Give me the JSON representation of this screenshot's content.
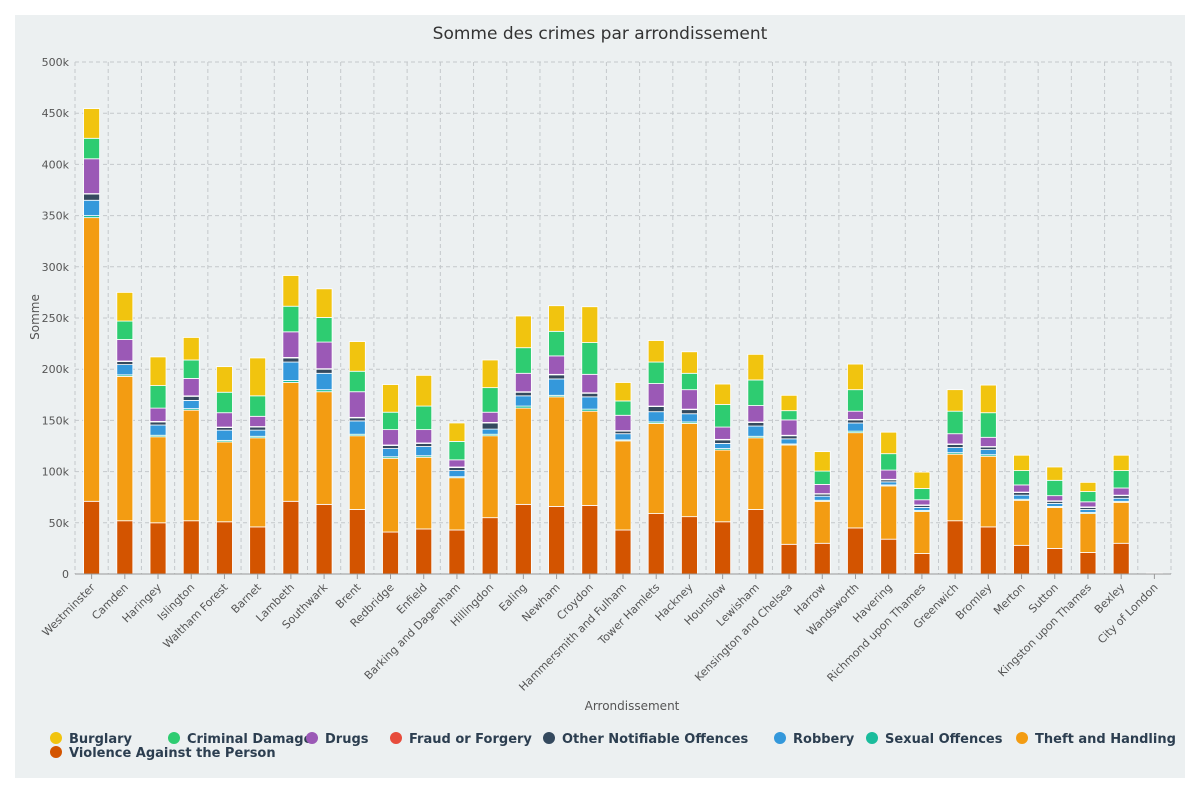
{
  "chart_data": {
    "type": "bar",
    "stacked": true,
    "title": "Somme des crimes par arrondissement",
    "xlabel": "Arrondissement",
    "ylabel": "Somme",
    "ylim": [
      0,
      500000
    ],
    "yticks": [
      "0",
      "50k",
      "100k",
      "150k",
      "200k",
      "250k",
      "300k",
      "350k",
      "400k",
      "450k",
      "500k"
    ],
    "grid": true,
    "legend_position": "bottom",
    "categories": [
      "Westminster",
      "Camden",
      "Haringey",
      "Islington",
      "Waltham Forest",
      "Barnet",
      "Lambeth",
      "Southwark",
      "Brent",
      "Redbridge",
      "Enfield",
      "Barking and Dagenham",
      "Hillingdon",
      "Ealing",
      "Newham",
      "Croydon",
      "Hammersmith and Fulham",
      "Tower Hamlets",
      "Hackney",
      "Hounslow",
      "Lewisham",
      "Kensington and Chelsea",
      "Harrow",
      "Wandsworth",
      "Havering",
      "Richmond upon Thames",
      "Greenwich",
      "Bromley",
      "Merton",
      "Sutton",
      "Kingston upon Thames",
      "Bexley",
      "City of London"
    ],
    "stack_order": [
      "Violence Against the Person",
      "Theft and Handling",
      "Sexual Offences",
      "Robbery",
      "Other Notifiable Offences",
      "Fraud or Forgery",
      "Drugs",
      "Criminal Damage",
      "Burglary"
    ],
    "series": [
      {
        "name": "Burglary",
        "color": "#f1c40f",
        "values": [
          29000,
          28000,
          28000,
          22000,
          25000,
          37000,
          30000,
          28000,
          29000,
          27000,
          30000,
          18000,
          27000,
          31000,
          25000,
          35000,
          18000,
          21000,
          21000,
          20000,
          25000,
          15000,
          19000,
          25000,
          21000,
          16000,
          21000,
          27000,
          15000,
          13000,
          9000,
          15000,
          100
        ]
      },
      {
        "name": "Criminal Damage",
        "color": "#2ecc71",
        "values": [
          20000,
          18000,
          22000,
          18000,
          20000,
          20000,
          25000,
          24000,
          20000,
          17000,
          23000,
          18000,
          24000,
          25000,
          24000,
          31000,
          14000,
          21000,
          16000,
          22000,
          25000,
          9000,
          13000,
          21000,
          16000,
          11000,
          22000,
          24000,
          14000,
          15000,
          10000,
          17000,
          100
        ]
      },
      {
        "name": "Drugs",
        "color": "#9b59b6",
        "values": [
          34000,
          21000,
          13000,
          17000,
          14000,
          10000,
          25000,
          26000,
          25000,
          15000,
          13000,
          7000,
          10000,
          18000,
          18000,
          18000,
          15000,
          22000,
          19000,
          12000,
          16000,
          15000,
          9000,
          8000,
          9000,
          5000,
          10000,
          9000,
          7000,
          5000,
          5000,
          7000,
          100
        ]
      },
      {
        "name": "Fraud or Forgery",
        "color": "#e74c3c",
        "values": [
          500,
          500,
          500,
          500,
          500,
          500,
          500,
          500,
          500,
          500,
          500,
          500,
          500,
          500,
          500,
          500,
          500,
          500,
          500,
          500,
          500,
          500,
          500,
          500,
          500,
          500,
          500,
          500,
          500,
          500,
          500,
          500,
          0
        ]
      },
      {
        "name": "Other Notifiable Offences",
        "color": "#34495e",
        "values": [
          6000,
          3000,
          3000,
          4000,
          2500,
          3000,
          4000,
          4000,
          3000,
          3000,
          3000,
          3000,
          6000,
          3500,
          4000,
          3500,
          2500,
          5000,
          4000,
          3500,
          3500,
          3000,
          2000,
          3000,
          2000,
          2000,
          3000,
          2500,
          2500,
          2000,
          2000,
          2500,
          0
        ]
      },
      {
        "name": "Robbery",
        "color": "#3498db",
        "values": [
          15000,
          10000,
          10000,
          8000,
          10000,
          6000,
          18000,
          16000,
          13000,
          8000,
          9000,
          6000,
          5000,
          10000,
          16000,
          12000,
          6000,
          10000,
          8000,
          5000,
          10000,
          5000,
          4000,
          8000,
          3000,
          3000,
          5000,
          5000,
          4000,
          3000,
          3000,
          3000,
          0
        ]
      },
      {
        "name": "Sexual Offences",
        "color": "#1abc9c",
        "values": [
          2000,
          1500,
          1500,
          1500,
          1500,
          1500,
          2000,
          2000,
          1500,
          1500,
          1500,
          1000,
          1500,
          2000,
          1500,
          2000,
          1000,
          1500,
          1500,
          1500,
          1500,
          1000,
          1000,
          1500,
          1000,
          1000,
          1500,
          1500,
          1000,
          1000,
          1000,
          1000,
          0
        ]
      },
      {
        "name": "Theft and Handling",
        "color": "#f39c12",
        "values": [
          277000,
          141000,
          84000,
          108000,
          78000,
          87000,
          116000,
          110000,
          72000,
          72000,
          70000,
          51000,
          80000,
          94000,
          107000,
          92000,
          87000,
          88000,
          91000,
          70000,
          70000,
          97000,
          41000,
          93000,
          52000,
          41000,
          65000,
          69000,
          44000,
          40000,
          38000,
          40000,
          200
        ]
      },
      {
        "name": "Violence Against the Person",
        "color": "#d35400",
        "values": [
          71000,
          52000,
          50000,
          52000,
          51000,
          46000,
          71000,
          68000,
          63000,
          41000,
          44000,
          43000,
          55000,
          68000,
          66000,
          67000,
          43000,
          59000,
          56000,
          51000,
          63000,
          29000,
          30000,
          45000,
          34000,
          20000,
          52000,
          46000,
          28000,
          25000,
          21000,
          30000,
          300
        ]
      }
    ]
  }
}
